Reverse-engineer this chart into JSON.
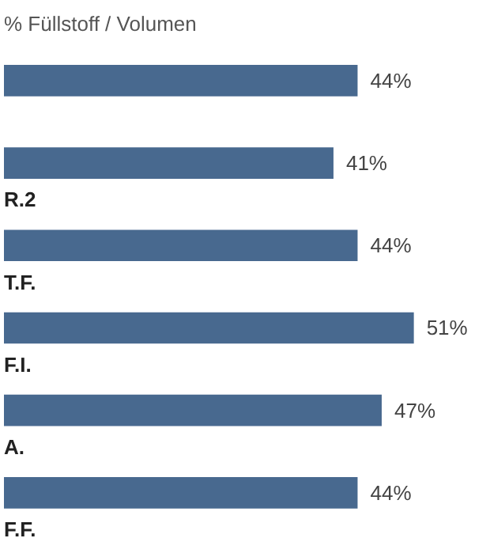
{
  "chart_data": {
    "type": "bar",
    "orientation": "horizontal",
    "relative": false,
    "title": "% Füllstoff / Volumen",
    "categories": [
      null,
      "R.2",
      "T.F.",
      "F.I.",
      "A.",
      "F.F."
    ],
    "values": [
      44,
      41,
      44,
      51,
      47,
      44
    ],
    "value_labels": [
      "44%",
      "41%",
      "44%",
      "51%",
      "47%",
      "44%"
    ],
    "color": "#48698f"
  }
}
